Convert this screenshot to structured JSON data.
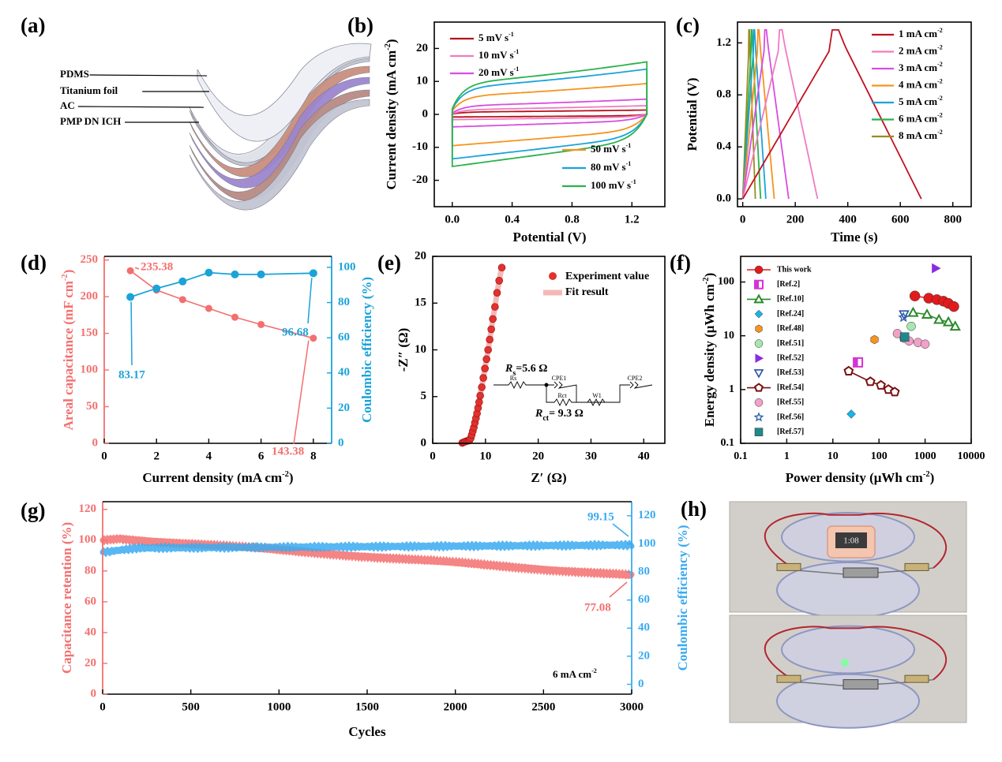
{
  "chart_data": [
    {
      "id": "a",
      "type": "diagram",
      "panel_label": "(a)",
      "layers": [
        "PDMS",
        "Titanium foil",
        "AC",
        "PMP DN ICH"
      ]
    },
    {
      "id": "b",
      "type": "line",
      "panel_label": "(b)",
      "xlabel": "Potential (V)",
      "ylabel": "Current density (mA cm",
      "ylabel_sup": "-2",
      "ylabel_end": ")",
      "xlim": [
        -0.12,
        1.42
      ],
      "ylim": [
        -28,
        28
      ],
      "xticks": [
        "0.0",
        "0.4",
        "0.8",
        "1.2"
      ],
      "xtick_vals": [
        0,
        0.4,
        0.8,
        1.2
      ],
      "yticks": [
        "-20",
        "-10",
        "0",
        "10",
        "20"
      ],
      "ytick_vals": [
        -20,
        -10,
        0,
        10,
        20
      ],
      "series": [
        {
          "name": "5 mV s",
          "sup": "-1",
          "color": "#b5121b",
          "upper": 1.2,
          "lower": -0.8
        },
        {
          "name": "10 mV s",
          "sup": "-1",
          "color": "#f07cc0",
          "upper": 2.4,
          "lower": -1.6
        },
        {
          "name": "20 mV s",
          "sup": "-1",
          "color": "#d84de0",
          "upper": 4.2,
          "lower": -3.8
        },
        {
          "name": "50 mV s",
          "sup": "-1",
          "color": "#f7931e",
          "upper": 8.5,
          "lower": -9.5
        },
        {
          "name": "80 mV s",
          "sup": "-1",
          "color": "#1aa3d9",
          "upper": 12.5,
          "lower": -13.5
        },
        {
          "name": "100 mV s",
          "sup": "-1",
          "color": "#2bb24c",
          "upper": 14.5,
          "lower": -15.8
        }
      ]
    },
    {
      "id": "c",
      "type": "line",
      "panel_label": "(c)",
      "xlabel": "Time (s)",
      "ylabel": "Potential (V)",
      "xlim": [
        -20,
        870
      ],
      "ylim": [
        -0.06,
        1.36
      ],
      "xticks": [
        "0",
        "200",
        "400",
        "600",
        "800"
      ],
      "xtick_vals": [
        0,
        200,
        400,
        600,
        800
      ],
      "yticks": [
        "0.0",
        "0.4",
        "0.8",
        "1.2"
      ],
      "ytick_vals": [
        0,
        0.4,
        0.8,
        1.2
      ],
      "series": [
        {
          "name": "1 mA cm",
          "sup": "-2",
          "color": "#c1121f",
          "charge_end": 365,
          "discharge_end": 680
        },
        {
          "name": "2 mA cm",
          "sup": "-2",
          "color": "#f07cc0",
          "charge_end": 150,
          "discharge_end": 285
        },
        {
          "name": "3 mA cm",
          "sup": "-2",
          "color": "#d84de0",
          "charge_end": 90,
          "discharge_end": 175
        },
        {
          "name": "4 mA cm",
          "sup": "-2",
          "color": "#f7931e",
          "charge_end": 62,
          "discharge_end": 120
        },
        {
          "name": "5 mA cm",
          "sup": "-2",
          "color": "#1aa3d9",
          "charge_end": 45,
          "discharge_end": 88
        },
        {
          "name": "6 mA cm",
          "sup": "-2",
          "color": "#2bb24c",
          "charge_end": 35,
          "discharge_end": 68
        },
        {
          "name": "8 mA cm",
          "sup": "-2",
          "color": "#9c8a1e",
          "charge_end": 25,
          "discharge_end": 48
        }
      ]
    },
    {
      "id": "d",
      "type": "line",
      "panel_label": "(d)",
      "xlabel": "Current density (mA cm",
      "xlabel_sup": "-2",
      "xlabel_end": ")",
      "ylabel_left": "Areal capacitance (mF cm",
      "ylabel_left_sup": "-2",
      "ylabel_left_end": ")",
      "ylabel_right": "Coulombic efficiency (%)",
      "xlim": [
        0,
        8.7
      ],
      "ylim_left": [
        0,
        255
      ],
      "ylim_right": [
        0,
        106.25
      ],
      "xticks": [
        "0",
        "2",
        "4",
        "6",
        "8"
      ],
      "xtick_vals": [
        0,
        2,
        4,
        6,
        8
      ],
      "yticks_left": [
        "0",
        "50",
        "100",
        "150",
        "200",
        "250"
      ],
      "ytick_vals_left": [
        0,
        50,
        100,
        150,
        200,
        250
      ],
      "yticks_right": [
        "0",
        "20",
        "40",
        "60",
        "80",
        "100"
      ],
      "ytick_vals_right": [
        0,
        20,
        40,
        60,
        80,
        100
      ],
      "x": [
        1,
        2,
        3,
        4,
        5,
        6,
        8
      ],
      "capacitance": [
        235.38,
        209,
        196,
        184,
        172,
        162,
        143.38
      ],
      "efficiency": [
        83.17,
        88,
        92,
        97,
        96,
        96,
        96.68
      ],
      "capacitance_color": "#f36f6f",
      "efficiency_color": "#1aa3d9",
      "annotations": [
        "235.38",
        "143.38",
        "83.17",
        "96.68"
      ]
    },
    {
      "id": "e",
      "type": "scatter",
      "panel_label": "(e)",
      "xlabel": "Z′ (Ω)",
      "ylabel": "-Z″ (Ω)",
      "xlim": [
        0,
        44
      ],
      "ylim": [
        0,
        20
      ],
      "xticks": [
        "0",
        "10",
        "20",
        "30",
        "40"
      ],
      "xtick_vals": [
        0,
        10,
        20,
        30,
        40
      ],
      "yticks": [
        "0",
        "5",
        "10",
        "15",
        "20"
      ],
      "ytick_vals": [
        0,
        5,
        10,
        15,
        20
      ],
      "legend": [
        "Experiment value",
        "Fit result"
      ],
      "experiment": [
        [
          5.6,
          0.05
        ],
        [
          5.9,
          0.12
        ],
        [
          6.2,
          0.2
        ],
        [
          6.5,
          0.25
        ],
        [
          6.8,
          0.28
        ],
        [
          7.0,
          0.35
        ],
        [
          7.2,
          0.55
        ],
        [
          7.4,
          0.9
        ],
        [
          7.6,
          1.3
        ],
        [
          7.8,
          1.7
        ],
        [
          8.0,
          2.2
        ],
        [
          8.2,
          2.7
        ],
        [
          8.4,
          3.2
        ],
        [
          8.6,
          3.8
        ],
        [
          8.8,
          4.4
        ],
        [
          9.0,
          5.1
        ],
        [
          9.3,
          6.0
        ],
        [
          9.6,
          7.0
        ],
        [
          9.9,
          8.0
        ],
        [
          10.2,
          9.0
        ],
        [
          10.5,
          10.0
        ],
        [
          10.8,
          11.1
        ],
        [
          11.1,
          12.2
        ],
        [
          11.4,
          13.3
        ],
        [
          11.8,
          14.6
        ],
        [
          12.2,
          16.1
        ],
        [
          12.6,
          17.4
        ],
        [
          13.1,
          18.8
        ]
      ],
      "rs_label": "R",
      "rs_sub": "s",
      "rs_value": "=5.6 Ω",
      "rct_label": "R",
      "rct_sub": "ct",
      "rct_value": "= 9.3 Ω",
      "circuit_labels": [
        "Rs",
        "CPE1",
        "Rct",
        "W1",
        "CPE2"
      ]
    },
    {
      "id": "f",
      "type": "scatter",
      "panel_label": "(f)",
      "xlabel": "Power density (μWh cm",
      "xlabel_sup": "-2",
      "xlabel_end": ")",
      "ylabel": "Energy density (μWh cm",
      "ylabel_sup": "-2",
      "ylabel_end": ")",
      "xscale": "log",
      "yscale": "log",
      "xlim": [
        0.1,
        10000
      ],
      "ylim": [
        0.1,
        300
      ],
      "xticks": [
        "0.1",
        "1",
        "10",
        "100",
        "1000",
        "10000"
      ],
      "xtick_vals": [
        0.1,
        1,
        10,
        100,
        1000,
        10000
      ],
      "yticks": [
        "0.1",
        "1",
        "10",
        "100"
      ],
      "ytick_vals": [
        0.1,
        1,
        10,
        100
      ],
      "series": [
        {
          "name": "This work",
          "color": "#e31a1c",
          "marker": "circle",
          "points": [
            [
              600,
              55
            ],
            [
              1200,
              50
            ],
            [
              1800,
              47
            ],
            [
              2500,
              44
            ],
            [
              3200,
              40
            ],
            [
              4200,
              35
            ]
          ]
        },
        {
          "name": "[Ref.2]",
          "color": "#d633d6",
          "marker": "halfsquare",
          "points": [
            [
              35,
              3.2
            ]
          ]
        },
        {
          "name": "[Ref.10]",
          "color": "#2a8a2a",
          "marker": "triangle",
          "points": [
            [
              550,
              27
            ],
            [
              1100,
              25
            ],
            [
              2000,
              20
            ],
            [
              3200,
              18
            ],
            [
              4500,
              15
            ]
          ]
        },
        {
          "name": "[Ref.24]",
          "color": "#1ab3e6",
          "marker": "diamond",
          "points": [
            [
              25,
              0.35
            ]
          ]
        },
        {
          "name": "[Ref.48]",
          "color": "#f7931e",
          "marker": "hexagon",
          "points": [
            [
              80,
              8.5
            ]
          ]
        },
        {
          "name": "[Ref.51]",
          "color": "#a8e6b0",
          "marker": "circle",
          "points": [
            [
              500,
              15
            ]
          ]
        },
        {
          "name": "[Ref.52]",
          "color": "#8a2be2",
          "marker": "righttriangle",
          "points": [
            [
              1700,
              180
            ]
          ]
        },
        {
          "name": "[Ref.53]",
          "color": "#2b4fa8",
          "marker": "downtriangle",
          "points": [
            [
              350,
              25
            ]
          ]
        },
        {
          "name": "[Ref.54]",
          "color": "#7a1010",
          "marker": "pentagon",
          "points": [
            [
              22,
              2.2
            ],
            [
              65,
              1.4
            ],
            [
              110,
              1.2
            ],
            [
              160,
              1.0
            ],
            [
              220,
              0.9
            ]
          ]
        },
        {
          "name": "[Ref.55]",
          "color": "#f2a0c8",
          "marker": "circle",
          "points": [
            [
              250,
              11
            ],
            [
              350,
              9
            ],
            [
              450,
              8
            ],
            [
              700,
              7.5
            ],
            [
              1000,
              7
            ]
          ]
        },
        {
          "name": "[Ref.56]",
          "color": "#2b5fa8",
          "marker": "star",
          "points": [
            [
              340,
              22
            ]
          ]
        },
        {
          "name": "[Ref.57]",
          "color": "#1e8a8a",
          "marker": "square",
          "points": [
            [
              360,
              9.5
            ]
          ]
        }
      ]
    },
    {
      "id": "g",
      "type": "scatter",
      "panel_label": "(g)",
      "xlabel": "Cycles",
      "ylabel_left": "Capacitance retention (%)",
      "ylabel_right": "Coulombic efficiency (%)",
      "xlim": [
        0,
        3000
      ],
      "ylim_left": [
        0,
        125
      ],
      "ylim_right": [
        -7,
        130
      ],
      "xticks": [
        "0",
        "500",
        "1000",
        "1500",
        "2000",
        "2500",
        "3000"
      ],
      "xtick_vals": [
        0,
        500,
        1000,
        1500,
        2000,
        2500,
        3000
      ],
      "yticks_left": [
        "0",
        "20",
        "40",
        "60",
        "80",
        "100",
        "120"
      ],
      "ytick_vals_left": [
        0,
        20,
        40,
        60,
        80,
        100,
        120
      ],
      "yticks_right": [
        "0",
        "20",
        "40",
        "60",
        "80",
        "100",
        "120"
      ],
      "ytick_vals_right": [
        0,
        20,
        40,
        60,
        80,
        100,
        120
      ],
      "retention_start": 100,
      "retention_end": 77.08,
      "efficiency_start": 94,
      "efficiency_end": 99.15,
      "retention_color": "#f36f6f",
      "efficiency_color": "#3aaaf0",
      "annotations": [
        "99.15",
        "77.08"
      ],
      "condition": "6 mA cm",
      "condition_sup": "-2"
    },
    {
      "id": "h",
      "type": "photo",
      "panel_label": "(h)",
      "display_text": "1:08"
    }
  ]
}
